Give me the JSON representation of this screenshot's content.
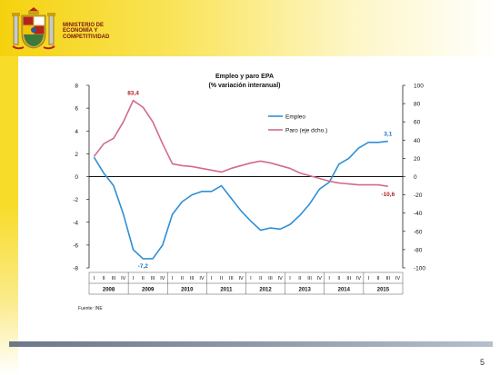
{
  "header": {
    "ministry_lines": "MINISTERIO DE\nECONOMÍA Y\nCOMPETITIVIDAD"
  },
  "footer": {
    "source": "Fuente: INE",
    "page_number": "5"
  },
  "colors": {
    "empleo": "#2e8fd6",
    "paro": "#d26a8e",
    "label_empleo": "#1f6fb5",
    "label_paro": "#b32020",
    "header_yellow": "#f5d20f"
  },
  "chart_data": {
    "type": "line",
    "title": "Empleo y paro EPA",
    "subtitle": "(% variación interanual)",
    "x": [
      "2008-I",
      "2008-II",
      "2008-III",
      "2008-IV",
      "2009-I",
      "2009-II",
      "2009-III",
      "2009-IV",
      "2010-I",
      "2010-II",
      "2010-III",
      "2010-IV",
      "2011-I",
      "2011-II",
      "2011-III",
      "2011-IV",
      "2012-I",
      "2012-II",
      "2012-III",
      "2012-IV",
      "2013-I",
      "2013-II",
      "2013-III",
      "2013-IV",
      "2014-I",
      "2014-II",
      "2014-III",
      "2014-IV",
      "2015-I",
      "2015-II",
      "2015-III"
    ],
    "quarter_labels": [
      "I",
      "II",
      "III",
      "IV",
      "I",
      "II",
      "III",
      "IV",
      "I",
      "II",
      "III",
      "IV",
      "I",
      "II",
      "III",
      "IV",
      "I",
      "II",
      "III",
      "IV",
      "I",
      "II",
      "III",
      "IV",
      "I",
      "II",
      "III",
      "IV",
      "I",
      "II",
      "III",
      "IV"
    ],
    "years": [
      "2008",
      "2009",
      "2010",
      "2011",
      "2012",
      "2013",
      "2014",
      "2015"
    ],
    "series": [
      {
        "name": "Empleo",
        "axis": "left",
        "values": [
          1.7,
          0.3,
          -0.8,
          -3.3,
          -6.4,
          -7.2,
          -7.2,
          -6.0,
          -3.3,
          -2.2,
          -1.6,
          -1.3,
          -1.3,
          -0.8,
          -1.9,
          -3.0,
          -3.9,
          -4.7,
          -4.5,
          -4.6,
          -4.2,
          -3.4,
          -2.4,
          -1.1,
          -0.5,
          1.1,
          1.6,
          2.5,
          3.0,
          3.0,
          3.1
        ]
      },
      {
        "name": "Paro (eje dcho.)",
        "axis": "right",
        "values": [
          22,
          36,
          42,
          60,
          83.4,
          76,
          60,
          36,
          14,
          12,
          11,
          9,
          7,
          5,
          9,
          12,
          15,
          17,
          15,
          12,
          9,
          4,
          1,
          -2,
          -5,
          -7,
          -8,
          -9,
          -9,
          -9,
          -10.6
        ]
      }
    ],
    "annotations": [
      {
        "text": "83,4",
        "series": "Paro (eje dcho.)",
        "index": 4
      },
      {
        "text": "-7,2",
        "series": "Empleo",
        "index": 5
      },
      {
        "text": "3,1",
        "series": "Empleo",
        "index": 30
      },
      {
        "text": "-10,6",
        "series": "Paro (eje dcho.)",
        "index": 30
      }
    ],
    "y_left": {
      "min": -8,
      "max": 8,
      "ticks": [
        8,
        6,
        4,
        2,
        0,
        -2,
        -4,
        -6,
        -8
      ]
    },
    "y_right": {
      "min": -100,
      "max": 100,
      "ticks": [
        100,
        80,
        60,
        40,
        20,
        0,
        -20,
        -40,
        -60,
        -80,
        -100
      ]
    },
    "legend_position": "top-right",
    "grid": false
  }
}
